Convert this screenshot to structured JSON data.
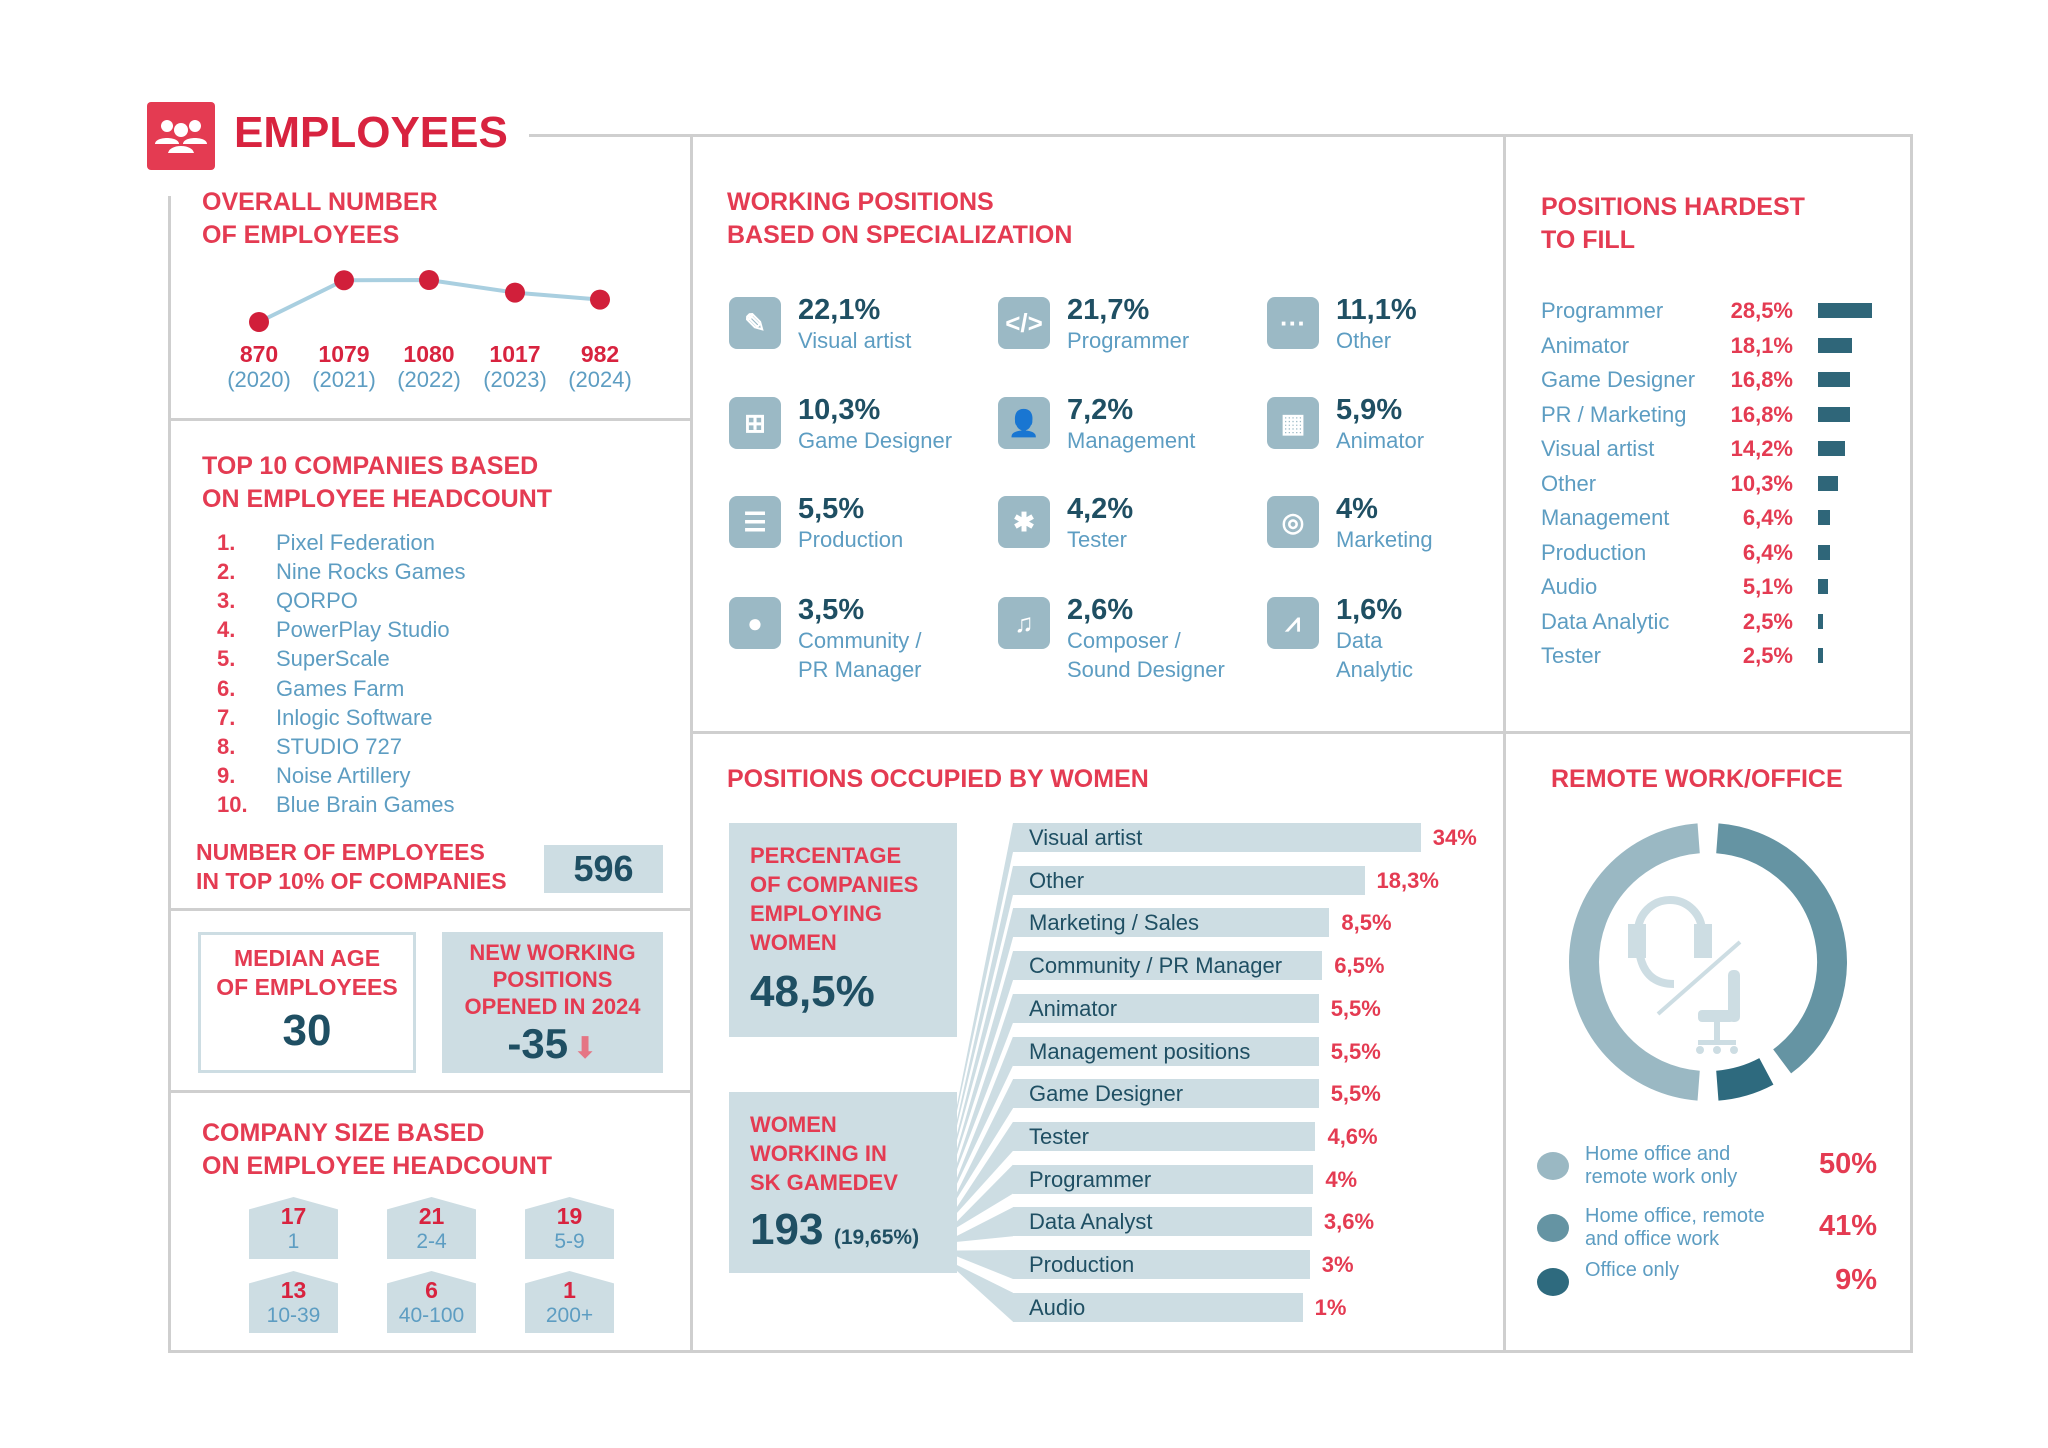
{
  "header": {
    "title": "EMPLOYEES",
    "icon": "people-group-icon"
  },
  "colors": {
    "accent": "#e43b52",
    "dark": "#1f4f63",
    "light_blue": "#5d9dc2",
    "panel": "#cddde3"
  },
  "overall": {
    "title": "OVERALL NUMBER\nOF EMPLOYEES"
  },
  "chart_data": {
    "type": "line",
    "x": [
      "2020",
      "2021",
      "2022",
      "2023",
      "2024"
    ],
    "values": [
      870,
      1079,
      1080,
      1017,
      982
    ],
    "value_labels": [
      "870",
      "1079",
      "1080",
      "1017",
      "982"
    ],
    "x_labels": [
      "(2020)",
      "(2021)",
      "(2022)",
      "(2023)",
      "(2024)"
    ]
  },
  "top10": {
    "title": "TOP 10 COMPANIES BASED\nON EMPLOYEE HEADCOUNT",
    "items": [
      {
        "n": "1.",
        "name": "Pixel Federation"
      },
      {
        "n": "2.",
        "name": "Nine Rocks Games"
      },
      {
        "n": "3.",
        "name": "QORPO"
      },
      {
        "n": "4.",
        "name": "PowerPlay Studio"
      },
      {
        "n": "5.",
        "name": "SuperScale"
      },
      {
        "n": "6.",
        "name": "Games Farm"
      },
      {
        "n": "7.",
        "name": "Inlogic Software"
      },
      {
        "n": "8.",
        "name": "STUDIO 727"
      },
      {
        "n": "9.",
        "name": "Noise Artillery"
      },
      {
        "n": "10.",
        "name": "Blue Brain Games"
      }
    ],
    "top_label": "NUMBER OF EMPLOYEES\nIN TOP 10% OF COMPANIES",
    "top_value": "596"
  },
  "median": {
    "label": "MEDIAN AGE\nOF EMPLOYEES",
    "value": "30"
  },
  "new_positions": {
    "label": "NEW WORKING\nPOSITIONS\nOPENED IN 2024",
    "value": "-35",
    "icon": "arrow-down-icon"
  },
  "company_size": {
    "title": "COMPANY SIZE BASED\nON EMPLOYEE HEADCOUNT",
    "items": [
      {
        "count": "17",
        "range": "1"
      },
      {
        "count": "21",
        "range": "2-4"
      },
      {
        "count": "19",
        "range": "5-9"
      },
      {
        "count": "13",
        "range": "10-39"
      },
      {
        "count": "6",
        "range": "40-100"
      },
      {
        "count": "1",
        "range": "200+"
      }
    ]
  },
  "specialization": {
    "title": "WORKING POSITIONS\nBASED ON SPECIALIZATION",
    "items": [
      {
        "value": "22,1%",
        "label": "Visual artist",
        "icon": "brush-icon",
        "glyph": "✎"
      },
      {
        "value": "21,7%",
        "label": "Programmer",
        "icon": "code-icon",
        "glyph": "</>"
      },
      {
        "value": "11,1%",
        "label": "Other",
        "icon": "more-icon",
        "glyph": "···"
      },
      {
        "value": "10,3%",
        "label": "Game Designer",
        "icon": "flowchart-icon",
        "glyph": "⊞"
      },
      {
        "value": "7,2%",
        "label": "Management",
        "icon": "manager-icon",
        "glyph": "👤"
      },
      {
        "value": "5,9%",
        "label": "Animator",
        "icon": "film-icon",
        "glyph": "▦"
      },
      {
        "value": "5,5%",
        "label": "Production",
        "icon": "gantt-icon",
        "glyph": "☰"
      },
      {
        "value": "4,2%",
        "label": "Tester",
        "icon": "bug-icon",
        "glyph": "✱"
      },
      {
        "value": "4%",
        "label": "Marketing",
        "icon": "target-icon",
        "glyph": "◎"
      },
      {
        "value": "3,5%",
        "label": "Community /\nPR Manager",
        "icon": "chat-icon",
        "glyph": "●"
      },
      {
        "value": "2,6%",
        "label": "Composer /\nSound Designer",
        "icon": "music-icon",
        "glyph": "♫"
      },
      {
        "value": "1,6%",
        "label": "Data\nAnalytic",
        "icon": "line-chart-icon",
        "glyph": "⩘"
      }
    ]
  },
  "hardest": {
    "title": "POSITIONS HARDEST\nTO FILL",
    "items": [
      {
        "label": "Programmer",
        "value": "28,5%",
        "pct": 28.5
      },
      {
        "label": "Animator",
        "value": "18,1%",
        "pct": 18.1
      },
      {
        "label": "Game Designer",
        "value": "16,8%",
        "pct": 16.8
      },
      {
        "label": "PR / Marketing",
        "value": "16,8%",
        "pct": 16.8
      },
      {
        "label": "Visual artist",
        "value": "14,2%",
        "pct": 14.2
      },
      {
        "label": "Other",
        "value": "10,3%",
        "pct": 10.3
      },
      {
        "label": "Management",
        "value": "6,4%",
        "pct": 6.4
      },
      {
        "label": "Production",
        "value": "6,4%",
        "pct": 6.4
      },
      {
        "label": "Audio",
        "value": "5,1%",
        "pct": 5.1
      },
      {
        "label": "Data Analytic",
        "value": "2,5%",
        "pct": 2.5
      },
      {
        "label": "Tester",
        "value": "2,5%",
        "pct": 2.5
      }
    ]
  },
  "women": {
    "title": "POSITIONS OCCUPIED BY WOMEN",
    "companies_label": "PERCENTAGE\nOF COMPANIES\nEMPLOYING\nWOMEN",
    "companies_value": "48,5%",
    "working_label": "WOMEN\nWORKING IN\nSK GAMEDEV",
    "working_value": "193",
    "working_share": "(19,65%)",
    "items": [
      {
        "label": "Visual artist",
        "value": "34%",
        "pct": 34
      },
      {
        "label": "Other",
        "value": "18,3%",
        "pct": 18.3
      },
      {
        "label": "Marketing / Sales",
        "value": "8,5%",
        "pct": 8.5
      },
      {
        "label": "Community / PR Manager",
        "value": "6,5%",
        "pct": 6.5
      },
      {
        "label": "Animator",
        "value": "5,5%",
        "pct": 5.5
      },
      {
        "label": "Management positions",
        "value": "5,5%",
        "pct": 5.5
      },
      {
        "label": "Game Designer",
        "value": "5,5%",
        "pct": 5.5
      },
      {
        "label": "Tester",
        "value": "4,6%",
        "pct": 4.6
      },
      {
        "label": "Programmer",
        "value": "4%",
        "pct": 4
      },
      {
        "label": "Data Analyst",
        "value": "3,6%",
        "pct": 3.6
      },
      {
        "label": "Production",
        "value": "3%",
        "pct": 3
      },
      {
        "label": "Audio",
        "value": "1%",
        "pct": 1
      }
    ]
  },
  "remote": {
    "title": "REMOTE WORK/OFFICE",
    "center_icons": [
      "headset-icon",
      "office-chair-icon"
    ],
    "items": [
      {
        "label": "Home office and\nremote work only",
        "value": "50%",
        "pct": 50,
        "color": "#9ab8c3"
      },
      {
        "label": "Home office, remote\nand office work",
        "value": "41%",
        "pct": 41,
        "color": "#6594a3"
      },
      {
        "label": "Office only",
        "value": "9%",
        "pct": 9,
        "color": "#2e6a7e"
      }
    ]
  }
}
